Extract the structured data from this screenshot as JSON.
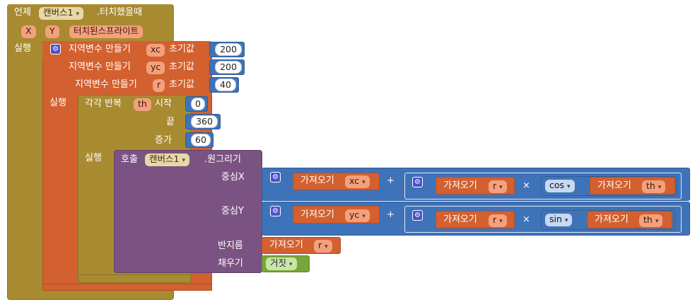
{
  "event": {
    "keyword": "언제",
    "component": "캔버스1",
    "event_name": ".터치했을때",
    "params": [
      "X",
      "Y",
      "터치된스프라이트"
    ],
    "do_label": "실행"
  },
  "locals": {
    "label": "지역변수 만들기",
    "init_label": "초기값",
    "do_label": "실행",
    "vars": [
      {
        "name": "xc",
        "value": "200"
      },
      {
        "name": "yc",
        "value": "200"
      },
      {
        "name": "r",
        "value": "40"
      }
    ]
  },
  "loop": {
    "label": "각각 반복",
    "var": "th",
    "start_label": "시작",
    "start": "0",
    "end_label": "끝",
    "end": "360",
    "step_label": "증가",
    "step": "60",
    "do_label": "실행"
  },
  "call": {
    "label": "호출",
    "component": "캔버스1",
    "method": ".원그리기",
    "centerX_label": "중심X",
    "centerY_label": "중심Y",
    "radius_label": "반지름",
    "fill_label": "채우기"
  },
  "get_label": "가져오기",
  "plus": "+",
  "times": "×",
  "cx_expr": {
    "base": "xc",
    "r": "r",
    "func": "cos",
    "angle": "th"
  },
  "cy_expr": {
    "base": "yc",
    "r": "r",
    "func": "sin",
    "angle": "th"
  },
  "radius_var": "r",
  "fill_value": "거짓",
  "colors": {
    "event": "#a88b31",
    "local": "#d3602f",
    "procedure": "#7b5382",
    "math": "#3f73b9",
    "logic": "#78a63a"
  }
}
